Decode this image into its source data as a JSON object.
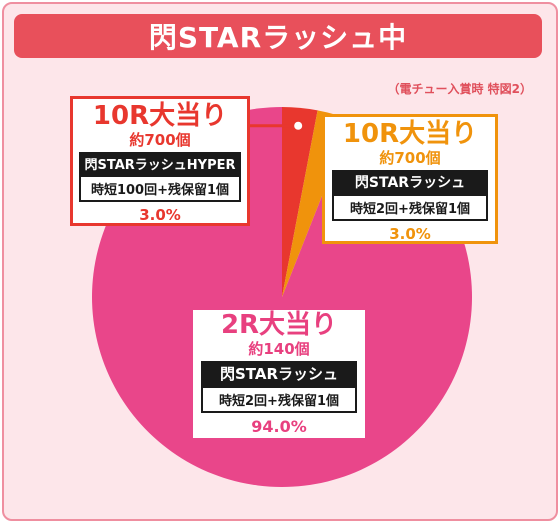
{
  "banner": {
    "title": "閃STARラッシュ中"
  },
  "note": "（電チュー入賞時 特図2）",
  "colors": {
    "big_slice": "#e9468a",
    "red_slice": "#e8372e",
    "orange_slice": "#f0930c"
  },
  "chart_data": {
    "type": "pie",
    "title": "閃STARラッシュ中",
    "slices": [
      {
        "key": "a",
        "label": "10R大当り",
        "sub": "約700個",
        "mode": "閃STARラッシュHYPER",
        "detail": "時短100回+残保留1個",
        "value": 3.0,
        "pct_label": "3.0%",
        "color": "#e8372e"
      },
      {
        "key": "b",
        "label": "10R大当り",
        "sub": "約700個",
        "mode": "閃STARラッシュ",
        "detail": "時短2回+残保留1個",
        "value": 3.0,
        "pct_label": "3.0%",
        "color": "#f0930c"
      },
      {
        "key": "c",
        "label": "2R大当り",
        "sub": "約140個",
        "mode": "閃STARラッシュ",
        "detail": "時短2回+残保留1個",
        "value": 94.0,
        "pct_label": "94.0%",
        "color": "#e9468a"
      }
    ]
  }
}
